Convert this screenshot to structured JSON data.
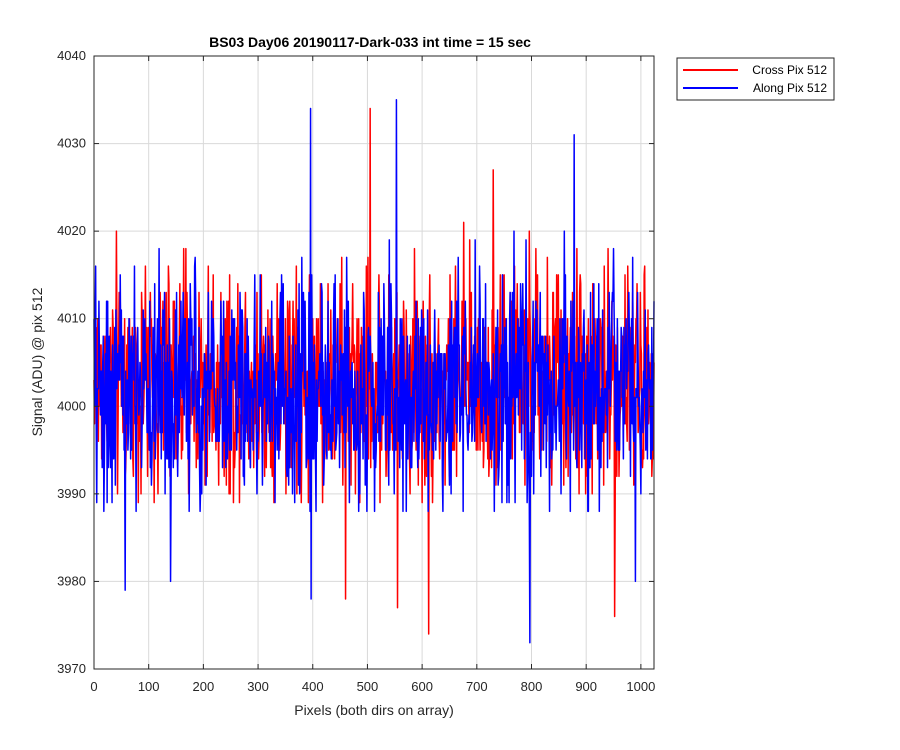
{
  "chart_data": {
    "type": "line",
    "title": "BS03 Day06 20190117-Dark-033 int time = 15 sec",
    "xlabel": "Pixels (both dirs on array)",
    "ylabel": "Signal (ADU) @ pix 512",
    "xlim": [
      0,
      1024
    ],
    "ylim": [
      3970,
      4040
    ],
    "xticks": [
      0,
      100,
      200,
      300,
      400,
      500,
      600,
      700,
      800,
      900,
      1000
    ],
    "yticks": [
      3970,
      3980,
      3990,
      4000,
      4010,
      4020,
      4030,
      4040
    ],
    "grid": true,
    "legend_position": "outside-top-right",
    "series": [
      {
        "name": "Cross Pix 512",
        "color": "#ff0000",
        "noise_center": 4003,
        "noise_spread": 7,
        "notable_points": [
          {
            "x": 505,
            "y": 4034
          },
          {
            "x": 730,
            "y": 4027
          },
          {
            "x": 612,
            "y": 3974
          },
          {
            "x": 555,
            "y": 3977
          },
          {
            "x": 952,
            "y": 3976
          },
          {
            "x": 460,
            "y": 3978
          }
        ]
      },
      {
        "name": "Along Pix 512",
        "color": "#0000ff",
        "noise_center": 4002,
        "noise_spread": 7,
        "notable_points": [
          {
            "x": 553,
            "y": 4035
          },
          {
            "x": 396,
            "y": 4034
          },
          {
            "x": 878,
            "y": 4031
          },
          {
            "x": 797,
            "y": 3973
          },
          {
            "x": 397,
            "y": 3978
          },
          {
            "x": 140,
            "y": 3980
          },
          {
            "x": 57,
            "y": 3979
          },
          {
            "x": 990,
            "y": 3980
          }
        ]
      }
    ]
  }
}
